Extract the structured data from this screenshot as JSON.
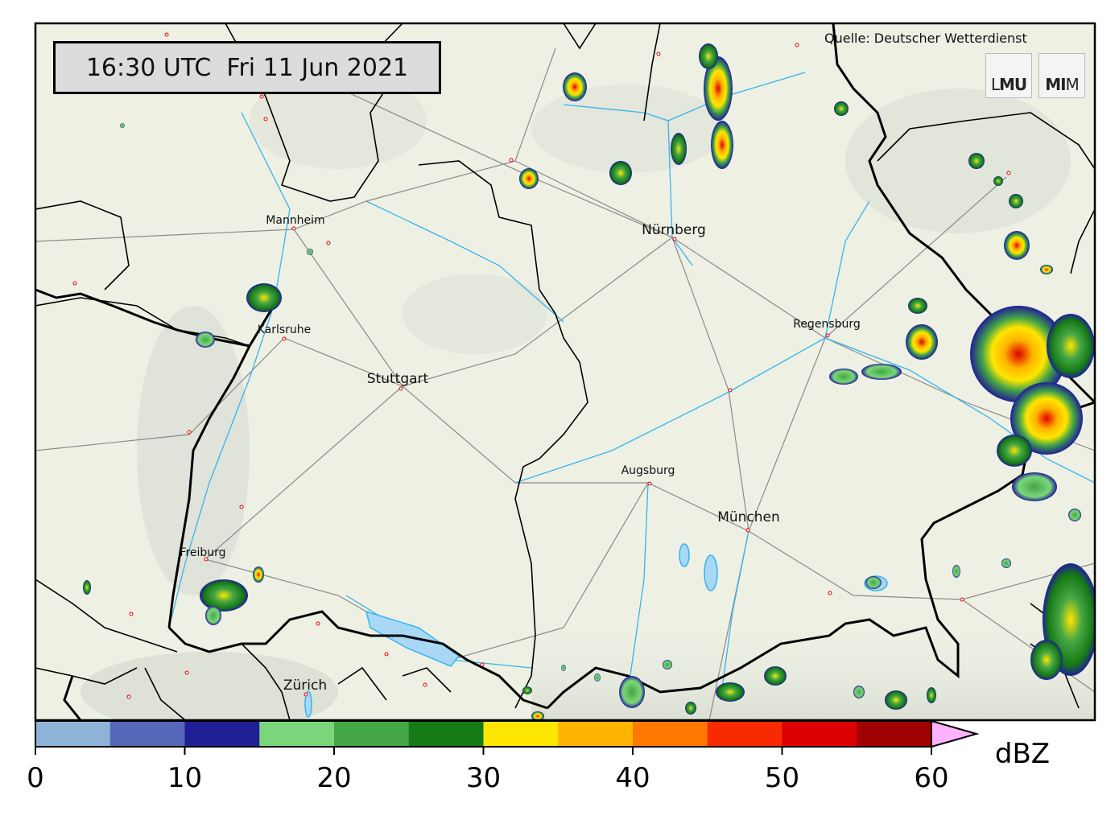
{
  "timestamp": "16:30 UTC  Fri 11 Jun 2021",
  "source": "Quelle: Deutscher Wetterdienst",
  "logos": [
    {
      "name": "lmu-logo",
      "prefix": "L",
      "bold": "MU",
      "suffix": ""
    },
    {
      "name": "mim-logo",
      "prefix": "",
      "bold": "MI",
      "suffix": "M"
    }
  ],
  "cities": [
    {
      "name": "Mannheim",
      "size": "small"
    },
    {
      "name": "Nürnberg",
      "size": "big"
    },
    {
      "name": "Karlsruhe",
      "size": "small"
    },
    {
      "name": "Regensburg",
      "size": "small"
    },
    {
      "name": "Stuttgart",
      "size": "big"
    },
    {
      "name": "Augsburg",
      "size": "small"
    },
    {
      "name": "München",
      "size": "big"
    },
    {
      "name": "Freiburg",
      "size": "small"
    },
    {
      "name": "Zürich",
      "size": "big"
    }
  ],
  "colorbar": {
    "unit": "dBZ",
    "ticks": [
      "0",
      "10",
      "20",
      "30",
      "40",
      "50",
      "60"
    ],
    "bins": [
      {
        "from": 0,
        "to": 5,
        "color": "#8eb3d9"
      },
      {
        "from": 5,
        "to": 10,
        "color": "#5567b8"
      },
      {
        "from": 10,
        "to": 15,
        "color": "#1f1f96"
      },
      {
        "from": 15,
        "to": 20,
        "color": "#7bd67b"
      },
      {
        "from": 20,
        "to": 25,
        "color": "#44a644"
      },
      {
        "from": 25,
        "to": 30,
        "color": "#167a16"
      },
      {
        "from": 30,
        "to": 35,
        "color": "#ffe600"
      },
      {
        "from": 35,
        "to": 40,
        "color": "#ffb400"
      },
      {
        "from": 40,
        "to": 45,
        "color": "#ff7800"
      },
      {
        "from": 45,
        "to": 50,
        "color": "#fa2a00"
      },
      {
        "from": 50,
        "to": 55,
        "color": "#dd0000"
      },
      {
        "from": 55,
        "to": 60,
        "color": "#a00000"
      }
    ],
    "extend_color": "#ffb3ff"
  },
  "colors": {
    "land": "#eef0e4",
    "borders": "#000000",
    "roads": "#8a8a8a",
    "rivers": "#35b4ef"
  }
}
